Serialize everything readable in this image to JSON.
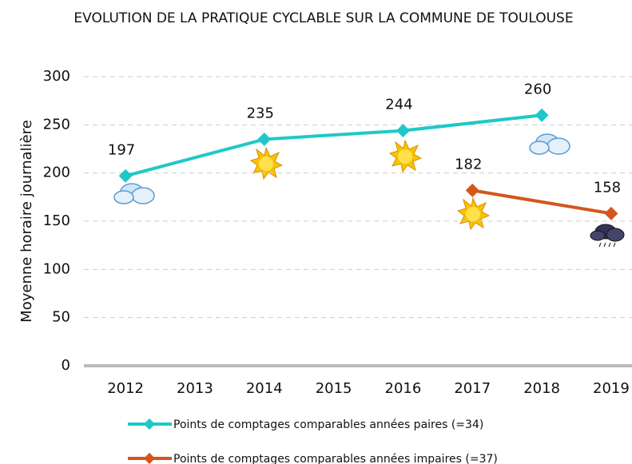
{
  "chart_data": {
    "type": "line",
    "title": "EVOLUTION DE LA PRATIQUE CYCLABLE SUR LA COMMUNE DE TOULOUSE",
    "ylabel": "Moyenne horaire journalière",
    "xlim": [
      2011.4,
      2019.3
    ],
    "xticks": [
      2012,
      2013,
      2014,
      2015,
      2016,
      2017,
      2018,
      2019
    ],
    "ylim": [
      0,
      300
    ],
    "yticks": [
      0,
      50,
      100,
      150,
      200,
      250,
      300
    ],
    "grid": true,
    "legend": "bottom",
    "series": [
      {
        "name": "Points de comptages comparables années paires (=34)",
        "color": "#1fc8c8",
        "x": [
          2012,
          2014,
          2016,
          2018
        ],
        "values": [
          197,
          235,
          244,
          260
        ]
      },
      {
        "name": "Points de comptages comparables années impaires (=37)",
        "color": "#d4561d",
        "x": [
          2017,
          2019
        ],
        "values": [
          182,
          158
        ]
      }
    ]
  }
}
